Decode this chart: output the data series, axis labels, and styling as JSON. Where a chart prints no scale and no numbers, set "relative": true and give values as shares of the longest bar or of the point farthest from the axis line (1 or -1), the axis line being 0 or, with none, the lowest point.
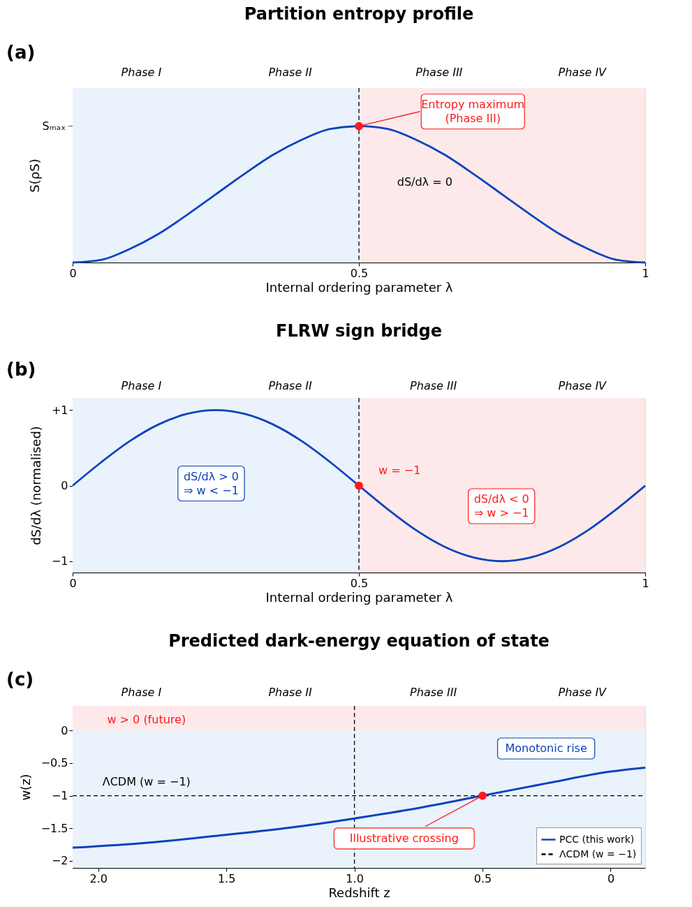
{
  "chart_data": [
    {
      "type": "line",
      "title": "Partition entropy profile",
      "xlabel": "Internal ordering parameter λ",
      "ylabel": "S(ρS)",
      "relative": true,
      "xlim": [
        0,
        1
      ],
      "xticks": [
        0,
        0.5,
        1
      ],
      "grid": false,
      "legend": false,
      "series": [
        {
          "color": "#0a43bd",
          "x": [
            0,
            0.05,
            0.1,
            0.15,
            0.2,
            0.25,
            0.3,
            0.35,
            0.4,
            0.45,
            0.5,
            0.55,
            0.6,
            0.65,
            0.7,
            0.75,
            0.8,
            0.85,
            0.9,
            0.95,
            1
          ],
          "values": [
            0,
            0.02,
            0.1,
            0.21,
            0.35,
            0.5,
            0.65,
            0.79,
            0.9,
            0.98,
            1,
            0.98,
            0.9,
            0.79,
            0.65,
            0.5,
            0.35,
            0.21,
            0.1,
            0.02,
            0
          ]
        },
        {
          "type": "scatter",
          "marker": "circle",
          "color": "#ff1a1a",
          "x": [
            0.5
          ],
          "values": [
            1
          ]
        }
      ],
      "bands": [
        {
          "axis": "x",
          "from": 0,
          "to": 0.5,
          "color": "#eaf2fc"
        },
        {
          "axis": "x",
          "from": 0.5,
          "to": 1,
          "color": "#fde9ea"
        }
      ],
      "ref_lines": [
        {
          "axis": "x",
          "value": 0.5,
          "color": "#000000",
          "line_style": "dashed"
        }
      ],
      "annotations": [
        "(a)",
        "Phase I",
        "Phase II",
        "Phase III",
        "Phase IV",
        "Sₘₐₓ",
        "dS/dλ = 0",
        "Entropy maximum\n(Phase III)"
      ]
    },
    {
      "type": "line",
      "title": "FLRW sign bridge",
      "xlabel": "Internal ordering parameter λ",
      "ylabel": "dS/dλ  (normalised)",
      "xlim": [
        0,
        1
      ],
      "xticks": [
        0,
        0.5,
        1
      ],
      "ylim": [
        -1.15,
        1.16
      ],
      "yticks": [
        -1,
        0,
        {
          "value": 1,
          "label": "+1"
        }
      ],
      "grid": false,
      "legend": false,
      "series": [
        {
          "color": "#0a43bd",
          "x": [
            0,
            0.05,
            0.1,
            0.15,
            0.2,
            0.25,
            0.3,
            0.35,
            0.4,
            0.45,
            0.5,
            0.55,
            0.6,
            0.65,
            0.7,
            0.75,
            0.8,
            0.85,
            0.9,
            0.95,
            1
          ],
          "values": [
            0,
            0.31,
            0.59,
            0.81,
            0.95,
            1,
            0.95,
            0.81,
            0.59,
            0.31,
            0,
            -0.31,
            -0.59,
            -0.81,
            -0.95,
            -1,
            -0.95,
            -0.81,
            -0.59,
            -0.31,
            0
          ]
        },
        {
          "type": "scatter",
          "marker": "circle",
          "color": "#ff1a1a",
          "x": [
            0.5
          ],
          "values": [
            0
          ]
        }
      ],
      "bands": [
        {
          "axis": "x",
          "from": 0,
          "to": 0.5,
          "color": "#eaf2fc"
        },
        {
          "axis": "x",
          "from": 0.5,
          "to": 1,
          "color": "#fde9ea"
        }
      ],
      "ref_lines": [
        {
          "axis": "x",
          "value": 0.5,
          "color": "#000000",
          "line_style": "dashed"
        }
      ],
      "annotations": [
        "(b)",
        "Phase I",
        "Phase II",
        "Phase III",
        "Phase IV",
        "dS/dλ > 0\n⇒ w < −1",
        "dS/dλ < 0\n⇒ w > −1",
        "w = −1"
      ]
    },
    {
      "type": "line",
      "title": "Predicted dark-energy equation of state",
      "xlabel": "Redshift z",
      "ylabel": "w(z)",
      "xlim": [
        2.1,
        -0.135
      ],
      "xticks": [
        {
          "value": 2,
          "label": "2.0"
        },
        1.5,
        {
          "value": 1,
          "label": "1.0"
        },
        0.5,
        0
      ],
      "ylim": [
        -2.11,
        0.38
      ],
      "yticks": [
        -2,
        -1.5,
        -1,
        -0.5,
        0
      ],
      "grid": false,
      "legend": "bottom right",
      "series": [
        {
          "name": "PCC (this work)",
          "color": "#0a43bd",
          "x": [
            2.1,
            1.8,
            1.5,
            1.25,
            1.0,
            0.75,
            0.5,
            0.25,
            0,
            -0.135
          ],
          "values": [
            -1.8,
            -1.72,
            -1.6,
            -1.49,
            -1.35,
            -1.19,
            -1.0,
            -0.81,
            -0.63,
            -0.57
          ]
        },
        {
          "name": "ΛCDM (w = −1)",
          "color": "#000000",
          "line_style": "dashed",
          "x": [
            2.1,
            -0.135
          ],
          "values": [
            -1,
            -1
          ]
        },
        {
          "type": "scatter",
          "marker": "circle",
          "color": "#ff1a1a",
          "x": [
            0.5
          ],
          "values": [
            -1
          ]
        }
      ],
      "bands": [
        {
          "axis": "y",
          "from": 0,
          "to": 0.38,
          "color": "#fde9ea"
        },
        {
          "axis": "y",
          "from": -2.11,
          "to": 0,
          "color": "#eaf2fc"
        }
      ],
      "ref_lines": [
        {
          "axis": "x",
          "value": 1.0,
          "color": "#000000",
          "line_style": "dashed"
        }
      ],
      "annotations": [
        "(c)",
        "Phase I",
        "Phase II",
        "Phase III",
        "Phase IV",
        "w > 0 (future)",
        "Monotonic rise",
        "ΛCDM (w = −1)",
        {
          "text": "Illustrative crossing",
          "x": 0.5,
          "y": -1
        }
      ]
    }
  ]
}
